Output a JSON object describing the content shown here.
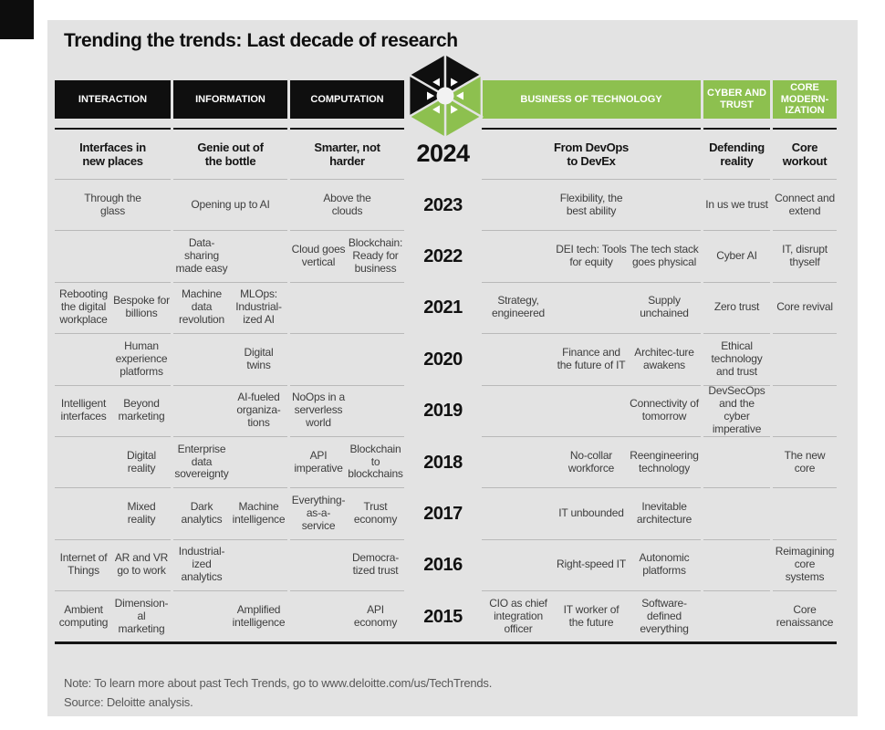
{
  "title": "Trending the trends: Last decade of research",
  "header": {
    "interaction": "INTERACTION",
    "information": "INFORMATION",
    "computation": "COMPUTATION",
    "business": "BUSINESS OF TECHNOLOGY",
    "cyber": "CYBER AND TRUST",
    "core": "CORE MODERN-IZATION"
  },
  "rows": [
    {
      "year": "2024",
      "emphasis": true,
      "cells": [
        {
          "col": "interaction",
          "sub": "span",
          "text": "Interfaces in new places"
        },
        {
          "col": "information",
          "sub": "span",
          "text": "Genie out of the bottle"
        },
        {
          "col": "computation",
          "sub": "span",
          "text": "Smarter, not harder"
        },
        {
          "col": "business",
          "sub": "span",
          "text": "From DevOps to DevEx"
        },
        {
          "col": "cyber",
          "sub": "span",
          "text": "Defending reality"
        },
        {
          "col": "core",
          "sub": "span",
          "text": "Core workout"
        }
      ]
    },
    {
      "year": "2023",
      "cells": [
        {
          "col": "interaction",
          "sub": "span",
          "text": "Through the glass"
        },
        {
          "col": "information",
          "sub": "span",
          "text": "Opening up to AI"
        },
        {
          "col": "computation",
          "sub": "span",
          "text": "Above the clouds"
        },
        {
          "col": "business",
          "sub": "span",
          "text": "Flexibility, the best ability"
        },
        {
          "col": "cyber",
          "sub": "span",
          "text": "In us we trust"
        },
        {
          "col": "core",
          "sub": "span",
          "text": "Connect and extend"
        }
      ]
    },
    {
      "year": "2022",
      "cells": [
        {
          "col": "information",
          "sub": 0,
          "text": "Data-sharing made easy"
        },
        {
          "col": "computation",
          "sub": 0,
          "text": "Cloud goes vertical"
        },
        {
          "col": "computation",
          "sub": 1,
          "text": "Blockchain: Ready for business"
        },
        {
          "col": "business",
          "sub": 1,
          "text": "DEI tech: Tools for equity"
        },
        {
          "col": "business",
          "sub": 2,
          "text": "The tech stack goes physical"
        },
        {
          "col": "cyber",
          "sub": "span",
          "text": "Cyber AI"
        },
        {
          "col": "core",
          "sub": "span",
          "text": "IT, disrupt thyself"
        }
      ]
    },
    {
      "year": "2021",
      "cells": [
        {
          "col": "interaction",
          "sub": 0,
          "text": "Rebooting the digital workplace"
        },
        {
          "col": "interaction",
          "sub": 1,
          "text": "Bespoke for billions"
        },
        {
          "col": "information",
          "sub": 0,
          "text": "Machine data revolution"
        },
        {
          "col": "information",
          "sub": 1,
          "text": "MLOps: Industrial-ized AI"
        },
        {
          "col": "business",
          "sub": 0,
          "text": "Strategy, engineered"
        },
        {
          "col": "business",
          "sub": 2,
          "text": "Supply unchained"
        },
        {
          "col": "cyber",
          "sub": "span",
          "text": "Zero trust"
        },
        {
          "col": "core",
          "sub": "span",
          "text": "Core revival"
        }
      ]
    },
    {
      "year": "2020",
      "cells": [
        {
          "col": "interaction",
          "sub": 1,
          "text": "Human experience platforms"
        },
        {
          "col": "information",
          "sub": 1,
          "text": "Digital twins"
        },
        {
          "col": "business",
          "sub": 1,
          "text": "Finance and the future of IT"
        },
        {
          "col": "business",
          "sub": 2,
          "text": "Architec-ture awakens"
        },
        {
          "col": "cyber",
          "sub": "span",
          "text": "Ethical technology and trust"
        }
      ]
    },
    {
      "year": "2019",
      "cells": [
        {
          "col": "interaction",
          "sub": 0,
          "text": "Intelligent interfaces"
        },
        {
          "col": "interaction",
          "sub": 1,
          "text": "Beyond marketing"
        },
        {
          "col": "information",
          "sub": 1,
          "text": "AI-fueled organiza-tions"
        },
        {
          "col": "computation",
          "sub": 0,
          "text": "NoOps in a serverless world"
        },
        {
          "col": "business",
          "sub": 2,
          "text": "Connectivity of tomorrow"
        },
        {
          "col": "cyber",
          "sub": "span",
          "text": "DevSecOps and the cyber imperative"
        }
      ]
    },
    {
      "year": "2018",
      "cells": [
        {
          "col": "interaction",
          "sub": 1,
          "text": "Digital reality"
        },
        {
          "col": "information",
          "sub": 0,
          "text": "Enterprise data sovereignty"
        },
        {
          "col": "computation",
          "sub": 0,
          "text": "API imperative"
        },
        {
          "col": "computation",
          "sub": 1,
          "text": "Blockchain to blockchains"
        },
        {
          "col": "business",
          "sub": 1,
          "text": "No-collar workforce"
        },
        {
          "col": "business",
          "sub": 2,
          "text": "Reengineering technology"
        },
        {
          "col": "core",
          "sub": "span",
          "text": "The new core"
        }
      ]
    },
    {
      "year": "2017",
      "cells": [
        {
          "col": "interaction",
          "sub": 1,
          "text": "Mixed reality"
        },
        {
          "col": "information",
          "sub": 0,
          "text": "Dark analytics"
        },
        {
          "col": "information",
          "sub": 1,
          "text": "Machine intelligence"
        },
        {
          "col": "computation",
          "sub": 0,
          "text": "Everything-as-a-service"
        },
        {
          "col": "computation",
          "sub": 1,
          "text": "Trust economy"
        },
        {
          "col": "business",
          "sub": 1,
          "text": "IT unbounded"
        },
        {
          "col": "business",
          "sub": 2,
          "text": "Inevitable architecture"
        }
      ]
    },
    {
      "year": "2016",
      "cells": [
        {
          "col": "interaction",
          "sub": 0,
          "text": "Internet of Things"
        },
        {
          "col": "interaction",
          "sub": 1,
          "text": "AR and VR go to work"
        },
        {
          "col": "information",
          "sub": 0,
          "text": "Industrial-ized analytics"
        },
        {
          "col": "computation",
          "sub": 1,
          "text": "Democra-tized trust"
        },
        {
          "col": "business",
          "sub": 1,
          "text": "Right-speed IT"
        },
        {
          "col": "business",
          "sub": 2,
          "text": "Autonomic platforms"
        },
        {
          "col": "core",
          "sub": "span",
          "text": "Reimagining core systems"
        }
      ]
    },
    {
      "year": "2015",
      "cells": [
        {
          "col": "interaction",
          "sub": 0,
          "text": "Ambient computing"
        },
        {
          "col": "interaction",
          "sub": 1,
          "text": "Dimension-al marketing"
        },
        {
          "col": "information",
          "sub": 1,
          "text": "Amplified intelligence"
        },
        {
          "col": "computation",
          "sub": 1,
          "text": "API economy"
        },
        {
          "col": "business",
          "sub": 0,
          "text": "CIO as chief integration officer"
        },
        {
          "col": "business",
          "sub": 1,
          "text": "IT worker of the future"
        },
        {
          "col": "business",
          "sub": 2,
          "text": "Software-defined everything"
        },
        {
          "col": "core",
          "sub": "span",
          "text": "Core renaissance"
        }
      ]
    }
  ],
  "footer": {
    "note": "Note: To learn more about past Tech Trends, go to www.deloitte.com/us/TechTrends.",
    "source": "Source: Deloitte analysis."
  },
  "colors": {
    "panel": "#e3e3e3",
    "header_black": "#0f0f0f",
    "header_green": "#8dc04f",
    "separator": "#b9b9b9",
    "year_text": "#111111",
    "cell_text": "#3d3d3d"
  }
}
